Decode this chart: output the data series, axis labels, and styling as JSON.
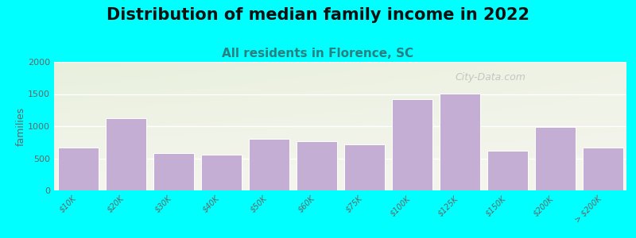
{
  "title": "Distribution of median family income in 2022",
  "subtitle": "All residents in Florence, SC",
  "ylabel": "families",
  "background_color": "#00FFFF",
  "bar_color": "#c4aed4",
  "bar_edge_color": "#ffffff",
  "categories": [
    "$10K",
    "$20K",
    "$30K",
    "$40K",
    "$50K",
    "$60K",
    "$75K",
    "$100K",
    "$125K",
    "$150K",
    "$200K",
    "> $200K"
  ],
  "values": [
    670,
    1120,
    580,
    560,
    800,
    760,
    720,
    1420,
    1510,
    620,
    990,
    670
  ],
  "ylim": [
    0,
    2000
  ],
  "yticks": [
    0,
    500,
    1000,
    1500,
    2000
  ],
  "title_fontsize": 15,
  "subtitle_fontsize": 11,
  "subtitle_color": "#2a8080",
  "watermark": "City-Data.com",
  "plot_bg_colors": [
    "#e8f0dc",
    "#f5f5ee"
  ],
  "grid_color": "#ffffff",
  "tick_color": "#666666",
  "ylabel_color": "#666666"
}
